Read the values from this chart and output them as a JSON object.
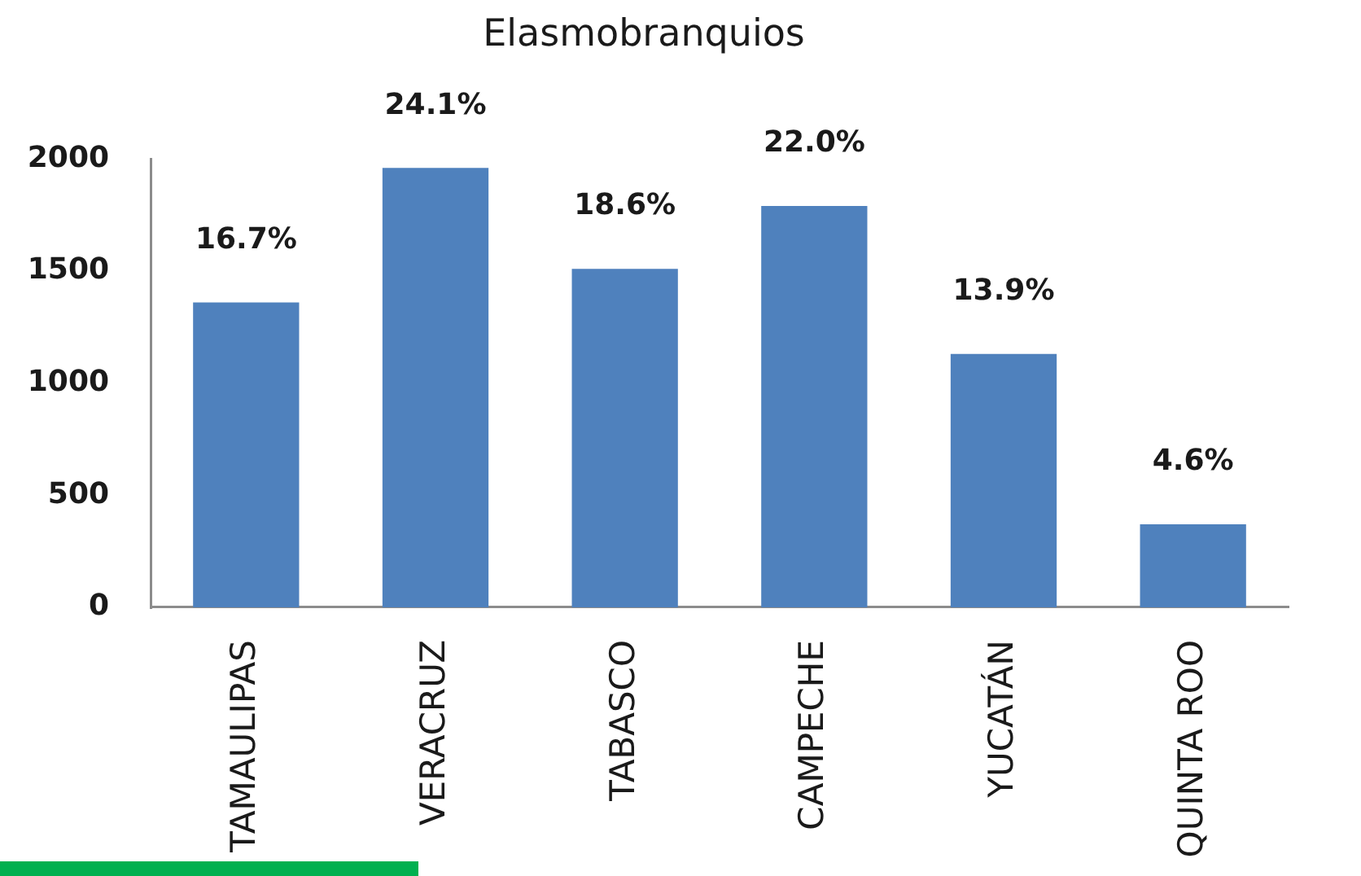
{
  "chart_data": {
    "type": "bar",
    "title": "Elasmobranquios",
    "categories": [
      "TAMAULIPAS",
      "VERACRUZ",
      "TABASCO",
      "CAMPECHE",
      "YUCATÁN",
      "QUINTA ROO"
    ],
    "values": [
      1360,
      1960,
      1510,
      1790,
      1130,
      370
    ],
    "color": "#4f81bd",
    "annotations": [
      {
        "text": "16.7%",
        "x": "TAMAULIPAS",
        "y": 1360
      },
      {
        "text": "24.1%",
        "x": "VERACRUZ",
        "y": 1960
      },
      {
        "text": "18.6%",
        "x": "TABASCO",
        "y": 1510
      },
      {
        "text": "22.0%",
        "x": "CAMPECHE",
        "y": 1790
      },
      {
        "text": "13.9%",
        "x": "YUCATÁN",
        "y": 1130
      },
      {
        "text": "4.6%",
        "x": "QUINTA ROO",
        "y": 370
      }
    ],
    "ylim": [
      0,
      2000
    ],
    "yticks": [
      0,
      500,
      1000,
      1500,
      2000
    ],
    "grid": false
  }
}
